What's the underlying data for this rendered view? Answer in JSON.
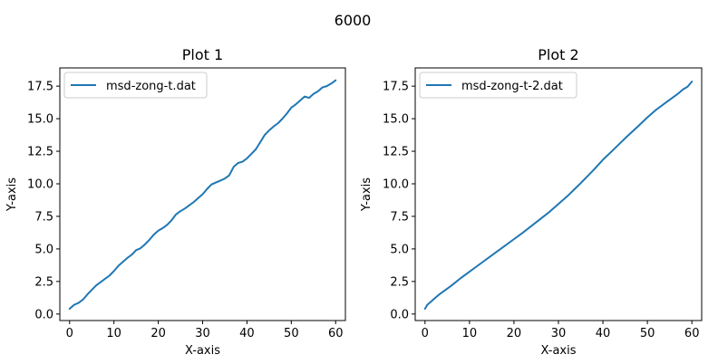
{
  "figure": {
    "suptitle": "6000"
  },
  "chart_data": [
    {
      "type": "line",
      "title": "Plot 1",
      "xlabel": "X-axis",
      "ylabel": "Y-axis",
      "xlim": [
        -2.2,
        62.2
      ],
      "ylim": [
        -0.5,
        18.9
      ],
      "xticks": [
        0,
        10,
        20,
        30,
        40,
        50,
        60
      ],
      "xtick_labels": [
        "0",
        "10",
        "20",
        "30",
        "40",
        "50",
        "60"
      ],
      "yticks": [
        0.0,
        2.5,
        5.0,
        7.5,
        10.0,
        12.5,
        15.0,
        17.5
      ],
      "ytick_labels": [
        "0.0",
        "2.5",
        "5.0",
        "7.5",
        "10.0",
        "12.5",
        "15.0",
        "17.5"
      ],
      "legend_position": "upper-left",
      "color": "#1f77b4",
      "series": [
        {
          "name": "msd-zong-t.dat",
          "x": [
            0,
            1,
            2,
            3,
            4,
            5,
            6,
            7,
            8,
            9,
            10,
            11,
            12,
            13,
            14,
            15,
            16,
            17,
            18,
            19,
            20,
            21,
            22,
            23,
            24,
            25,
            26,
            27,
            28,
            29,
            30,
            31,
            32,
            33,
            34,
            35,
            36,
            37,
            38,
            39,
            40,
            41,
            42,
            43,
            44,
            45,
            46,
            47,
            48,
            49,
            50,
            51,
            52,
            53,
            54,
            55,
            56,
            57,
            58,
            59,
            60
          ],
          "y": [
            0.4,
            0.7,
            0.85,
            1.1,
            1.5,
            1.85,
            2.2,
            2.45,
            2.7,
            2.95,
            3.3,
            3.7,
            4.0,
            4.3,
            4.55,
            4.9,
            5.05,
            5.35,
            5.7,
            6.1,
            6.4,
            6.6,
            6.85,
            7.2,
            7.65,
            7.9,
            8.1,
            8.35,
            8.6,
            8.9,
            9.2,
            9.6,
            9.95,
            10.1,
            10.25,
            10.4,
            10.65,
            11.3,
            11.6,
            11.7,
            11.95,
            12.3,
            12.65,
            13.2,
            13.75,
            14.1,
            14.4,
            14.65,
            15.0,
            15.4,
            15.85,
            16.1,
            16.4,
            16.7,
            16.6,
            16.9,
            17.1,
            17.4,
            17.5,
            17.7,
            17.95
          ]
        }
      ]
    },
    {
      "type": "line",
      "title": "Plot 2",
      "xlabel": "X-axis",
      "ylabel": "Y-axis",
      "xlim": [
        -2.2,
        62.2
      ],
      "ylim": [
        -0.5,
        18.9
      ],
      "xticks": [
        0,
        10,
        20,
        30,
        40,
        50,
        60
      ],
      "xtick_labels": [
        "0",
        "10",
        "20",
        "30",
        "40",
        "50",
        "60"
      ],
      "yticks": [
        0.0,
        2.5,
        5.0,
        7.5,
        10.0,
        12.5,
        15.0,
        17.5
      ],
      "ytick_labels": [
        "0.0",
        "2.5",
        "5.0",
        "7.5",
        "10.0",
        "12.5",
        "15.0",
        "17.5"
      ],
      "legend_position": "upper-left",
      "color": "#1f77b4",
      "series": [
        {
          "name": "msd-zong-t-2.dat",
          "x": [
            0,
            0.5,
            1,
            2,
            3,
            4,
            5,
            6,
            8,
            10,
            12,
            15,
            18,
            20,
            22,
            25,
            28,
            30,
            32,
            35,
            38,
            40,
            42,
            45,
            48,
            50,
            52,
            55,
            57,
            58,
            59,
            60
          ],
          "y": [
            0.4,
            0.7,
            0.85,
            1.15,
            1.45,
            1.7,
            1.95,
            2.2,
            2.75,
            3.25,
            3.75,
            4.5,
            5.25,
            5.75,
            6.25,
            7.05,
            7.85,
            8.45,
            9.05,
            10.05,
            11.1,
            11.85,
            12.5,
            13.5,
            14.45,
            15.1,
            15.7,
            16.45,
            16.95,
            17.25,
            17.45,
            17.85
          ]
        }
      ]
    }
  ]
}
